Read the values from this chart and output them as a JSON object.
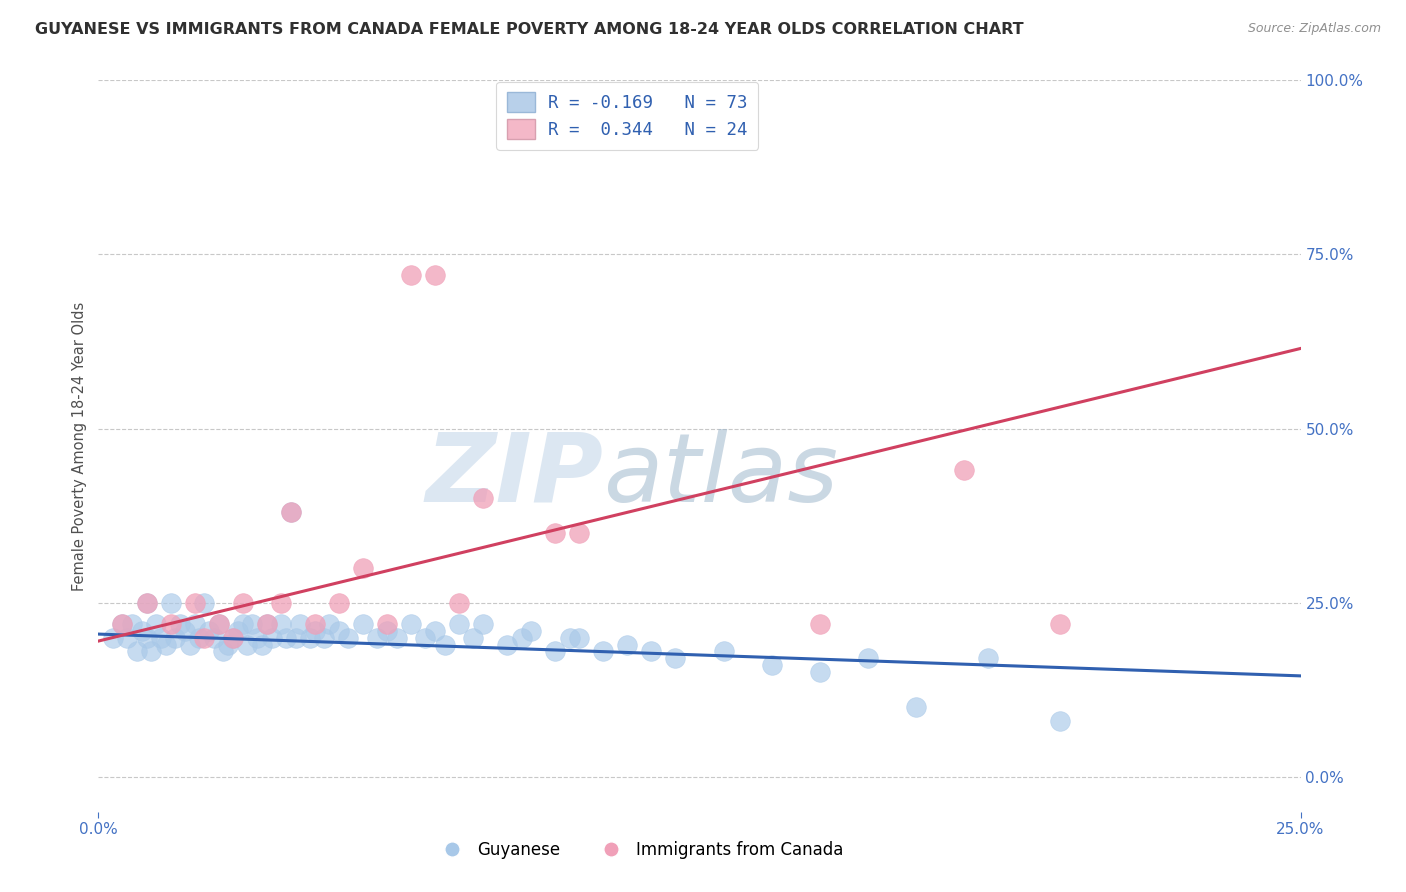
{
  "title": "GUYANESE VS IMMIGRANTS FROM CANADA FEMALE POVERTY AMONG 18-24 YEAR OLDS CORRELATION CHART",
  "source_text": "Source: ZipAtlas.com",
  "ylabel": "Female Poverty Among 18-24 Year Olds",
  "watermark_zip": "ZIP",
  "watermark_atlas": "atlas",
  "xlim": [
    0.0,
    0.25
  ],
  "ylim": [
    -0.05,
    1.0
  ],
  "ytick_vals": [
    0.0,
    0.25,
    0.5,
    0.75,
    1.0
  ],
  "ytick_labels": [
    "0.0%",
    "25.0%",
    "50.0%",
    "75.0%",
    "100.0%"
  ],
  "xtick_vals": [
    0.0,
    0.25
  ],
  "xtick_labels": [
    "0.0%",
    "25.0%"
  ],
  "legend_label_guyanese": "Guyanese",
  "legend_label_immigrants": "Immigrants from Canada",
  "blue_scatter_x": [
    0.003,
    0.005,
    0.006,
    0.007,
    0.008,
    0.009,
    0.01,
    0.01,
    0.011,
    0.012,
    0.013,
    0.014,
    0.015,
    0.016,
    0.017,
    0.018,
    0.019,
    0.02,
    0.021,
    0.022,
    0.023,
    0.024,
    0.025,
    0.026,
    0.027,
    0.028,
    0.029,
    0.03,
    0.031,
    0.032,
    0.033,
    0.034,
    0.035,
    0.036,
    0.038,
    0.039,
    0.04,
    0.041,
    0.042,
    0.044,
    0.045,
    0.047,
    0.048,
    0.05,
    0.052,
    0.055,
    0.058,
    0.06,
    0.062,
    0.065,
    0.068,
    0.07,
    0.072,
    0.075,
    0.078,
    0.08,
    0.085,
    0.088,
    0.09,
    0.095,
    0.098,
    0.1,
    0.105,
    0.11,
    0.115,
    0.12,
    0.13,
    0.14,
    0.15,
    0.16,
    0.17,
    0.185,
    0.2
  ],
  "blue_scatter_y": [
    0.2,
    0.22,
    0.2,
    0.22,
    0.18,
    0.21,
    0.2,
    0.25,
    0.18,
    0.22,
    0.2,
    0.19,
    0.25,
    0.2,
    0.22,
    0.21,
    0.19,
    0.22,
    0.2,
    0.25,
    0.21,
    0.2,
    0.22,
    0.18,
    0.19,
    0.2,
    0.21,
    0.22,
    0.19,
    0.22,
    0.2,
    0.19,
    0.22,
    0.2,
    0.22,
    0.2,
    0.38,
    0.2,
    0.22,
    0.2,
    0.21,
    0.2,
    0.22,
    0.21,
    0.2,
    0.22,
    0.2,
    0.21,
    0.2,
    0.22,
    0.2,
    0.21,
    0.19,
    0.22,
    0.2,
    0.22,
    0.19,
    0.2,
    0.21,
    0.18,
    0.2,
    0.2,
    0.18,
    0.19,
    0.18,
    0.17,
    0.18,
    0.16,
    0.15,
    0.17,
    0.1,
    0.17,
    0.08
  ],
  "pink_scatter_x": [
    0.005,
    0.01,
    0.015,
    0.02,
    0.022,
    0.025,
    0.028,
    0.03,
    0.035,
    0.038,
    0.04,
    0.045,
    0.05,
    0.055,
    0.06,
    0.065,
    0.07,
    0.075,
    0.08,
    0.095,
    0.1,
    0.15,
    0.18,
    0.2
  ],
  "pink_scatter_y": [
    0.22,
    0.25,
    0.22,
    0.25,
    0.2,
    0.22,
    0.2,
    0.25,
    0.22,
    0.25,
    0.38,
    0.22,
    0.25,
    0.3,
    0.22,
    0.72,
    0.72,
    0.25,
    0.4,
    0.35,
    0.35,
    0.22,
    0.44,
    0.22
  ],
  "blue_trend_x": [
    0.0,
    0.25
  ],
  "blue_trend_y": [
    0.205,
    0.145
  ],
  "pink_trend_x": [
    0.0,
    0.25
  ],
  "pink_trend_y": [
    0.195,
    0.615
  ],
  "blue_scatter_color": "#a8c8e8",
  "pink_scatter_color": "#f0a0b8",
  "blue_line_color": "#3060b0",
  "pink_line_color": "#d04060",
  "blue_legend_box": "#b8d0ea",
  "pink_legend_box": "#f4b8c8",
  "legend_text_color": "#3060b0",
  "grid_color": "#c8c8c8",
  "bg_color": "#ffffff",
  "title_color": "#303030",
  "tick_color": "#4472c4",
  "axis_label_color": "#505050",
  "watermark_color1": "#c0d4e8",
  "watermark_color2": "#a0b8cc"
}
